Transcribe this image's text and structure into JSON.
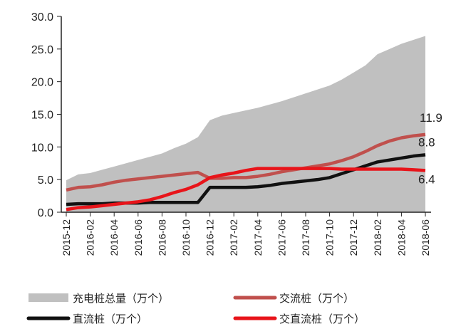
{
  "chart_data": {
    "type": "area+line",
    "x": [
      "2015-12",
      "2016-01",
      "2016-02",
      "2016-03",
      "2016-04",
      "2016-05",
      "2016-06",
      "2016-07",
      "2016-08",
      "2016-09",
      "2016-10",
      "2016-11",
      "2016-12",
      "2017-01",
      "2017-02",
      "2017-03",
      "2017-04",
      "2017-05",
      "2017-06",
      "2017-07",
      "2017-08",
      "2017-09",
      "2017-10",
      "2017-11",
      "2017-12",
      "2018-01",
      "2018-02",
      "2018-03",
      "2018-04",
      "2018-05",
      "2018-06"
    ],
    "xticks": [
      "2015-12",
      "2016-02",
      "2016-04",
      "2016-06",
      "2016-08",
      "2016-10",
      "2016-12",
      "2017-02",
      "2017-04",
      "2017-06",
      "2017-08",
      "2017-10",
      "2017-12",
      "2018-02",
      "2018-04",
      "2018-06"
    ],
    "yticks": [
      "0.0",
      "5.0",
      "10.0",
      "15.0",
      "20.0",
      "25.0",
      "30.0"
    ],
    "ylim": [
      0,
      30
    ],
    "grid": false,
    "legend_placement": "bottom",
    "series": [
      {
        "name": "充电桩总量（万个）",
        "kind": "area",
        "color": "#c0c0c0",
        "values": [
          4.9,
          5.8,
          6.0,
          6.5,
          7.0,
          7.5,
          8.0,
          8.5,
          9.0,
          9.8,
          10.5,
          11.5,
          14.1,
          14.8,
          15.2,
          15.6,
          16.0,
          16.5,
          17.0,
          17.6,
          18.2,
          18.8,
          19.4,
          20.3,
          21.4,
          22.5,
          24.2,
          25.0,
          25.8,
          26.4,
          27.0
        ]
      },
      {
        "name": "交流桩（万个）",
        "kind": "line",
        "color": "#c0504d",
        "values": [
          3.4,
          3.8,
          3.9,
          4.2,
          4.6,
          4.9,
          5.1,
          5.3,
          5.5,
          5.7,
          5.9,
          6.1,
          5.2,
          5.2,
          5.3,
          5.3,
          5.5,
          5.8,
          6.2,
          6.5,
          6.8,
          7.1,
          7.4,
          7.9,
          8.5,
          9.3,
          10.2,
          10.9,
          11.4,
          11.7,
          11.9
        ],
        "end_label": "11.9"
      },
      {
        "name": "直流桩（万个）",
        "kind": "line",
        "color": "#111111",
        "values": [
          1.2,
          1.3,
          1.3,
          1.3,
          1.4,
          1.4,
          1.4,
          1.5,
          1.5,
          1.5,
          1.5,
          1.5,
          3.8,
          3.8,
          3.8,
          3.8,
          3.9,
          4.1,
          4.4,
          4.6,
          4.8,
          5.0,
          5.3,
          5.9,
          6.5,
          7.1,
          7.7,
          8.0,
          8.3,
          8.6,
          8.8
        ],
        "end_label": "8.8"
      },
      {
        "name": "交直流桩（万个）",
        "kind": "line",
        "color": "#e8141a",
        "values": [
          0.4,
          0.7,
          0.8,
          1.0,
          1.2,
          1.4,
          1.6,
          1.9,
          2.4,
          3.0,
          3.5,
          4.2,
          5.3,
          5.7,
          6.0,
          6.4,
          6.7,
          6.7,
          6.7,
          6.7,
          6.7,
          6.7,
          6.7,
          6.6,
          6.6,
          6.6,
          6.6,
          6.6,
          6.6,
          6.5,
          6.4
        ],
        "end_label": "6.4"
      }
    ]
  }
}
